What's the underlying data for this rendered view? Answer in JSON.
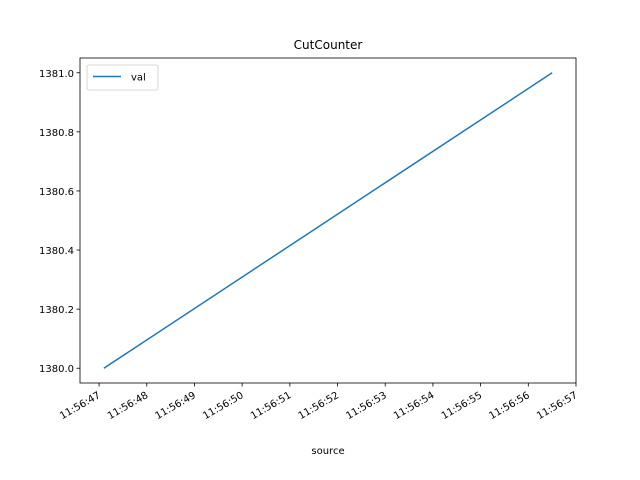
{
  "chart_data": {
    "type": "line",
    "title": "CutCounter",
    "xlabel": "source",
    "ylabel": "",
    "x": [
      "11:56:47.1",
      "11:56:56.5"
    ],
    "xlim": [
      "11:56:46.6",
      "11:56:57.0"
    ],
    "ylim": [
      1379.95,
      1381.05
    ],
    "yticks": [
      1380.0,
      1380.2,
      1380.4,
      1380.6,
      1380.8,
      1381.0
    ],
    "ytick_labels": [
      "1380.0",
      "1380.2",
      "1380.4",
      "1380.6",
      "1380.8",
      "1381.0"
    ],
    "xticks": [
      "11:56:47",
      "11:56:48",
      "11:56:49",
      "11:56:50",
      "11:56:51",
      "11:56:52",
      "11:56:53",
      "11:56:54",
      "11:56:55",
      "11:56:56",
      "11:56:57"
    ],
    "series": [
      {
        "name": "val",
        "values": [
          1380.0,
          1381.0
        ],
        "color": "#1f77b4"
      }
    ],
    "legend": {
      "position": "top-left"
    },
    "grid": false
  }
}
